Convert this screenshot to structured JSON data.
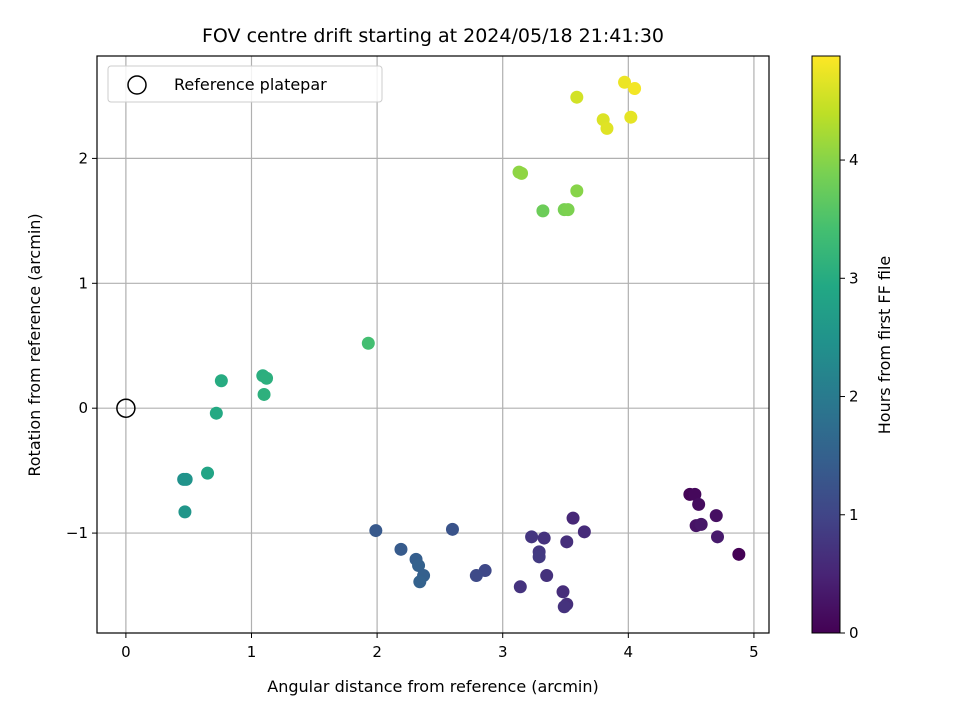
{
  "chart_data": {
    "type": "scatter",
    "title": "FOV centre drift starting at 2024/05/18 21:41:30",
    "xlabel": "Angular distance from reference (arcmin)",
    "ylabel": "Rotation from reference (arcmin)",
    "colorbar_label": "Hours from first FF file",
    "xlim": [
      -0.23,
      5.12
    ],
    "ylim": [
      -1.8,
      2.82
    ],
    "clim": [
      0,
      4.88
    ],
    "x_ticks": [
      0,
      1,
      2,
      3,
      4,
      5
    ],
    "y_ticks": [
      -1,
      0,
      1,
      2
    ],
    "colorbar_ticks": [
      0,
      1,
      2,
      3,
      4
    ],
    "grid": true,
    "legend_position": "top-left",
    "legend": [
      {
        "label": "Reference platepar",
        "marker": "open-circle",
        "color": "#000000"
      }
    ],
    "reference_point": {
      "x": 0,
      "y": 0
    },
    "colormap": "viridis",
    "points": [
      {
        "x": 4.49,
        "y": -0.69,
        "t": 0.05
      },
      {
        "x": 4.53,
        "y": -0.69,
        "t": 0.1
      },
      {
        "x": 4.56,
        "y": -0.77,
        "t": 0.15
      },
      {
        "x": 4.7,
        "y": -0.86,
        "t": 0.2
      },
      {
        "x": 4.54,
        "y": -0.94,
        "t": 0.25
      },
      {
        "x": 4.58,
        "y": -0.93,
        "t": 0.3
      },
      {
        "x": 4.71,
        "y": -1.03,
        "t": 0.35
      },
      {
        "x": 4.88,
        "y": -1.17,
        "t": 0.02
      },
      {
        "x": 3.56,
        "y": -0.88,
        "t": 0.55
      },
      {
        "x": 3.65,
        "y": -0.99,
        "t": 0.6
      },
      {
        "x": 3.51,
        "y": -1.07,
        "t": 0.65
      },
      {
        "x": 3.33,
        "y": -1.04,
        "t": 0.7
      },
      {
        "x": 3.23,
        "y": -1.03,
        "t": 0.75
      },
      {
        "x": 3.29,
        "y": -1.15,
        "t": 0.8
      },
      {
        "x": 3.29,
        "y": -1.19,
        "t": 0.82
      },
      {
        "x": 3.35,
        "y": -1.34,
        "t": 0.68
      },
      {
        "x": 3.14,
        "y": -1.43,
        "t": 0.72
      },
      {
        "x": 3.48,
        "y": -1.47,
        "t": 0.62
      },
      {
        "x": 3.51,
        "y": -1.57,
        "t": 0.66
      },
      {
        "x": 3.49,
        "y": -1.59,
        "t": 0.7
      },
      {
        "x": 2.86,
        "y": -1.3,
        "t": 1.05
      },
      {
        "x": 2.79,
        "y": -1.34,
        "t": 1.08
      },
      {
        "x": 2.6,
        "y": -0.97,
        "t": 1.25
      },
      {
        "x": 1.99,
        "y": -0.98,
        "t": 1.35
      },
      {
        "x": 2.19,
        "y": -1.13,
        "t": 1.4
      },
      {
        "x": 2.31,
        "y": -1.21,
        "t": 1.45
      },
      {
        "x": 2.33,
        "y": -1.26,
        "t": 1.5
      },
      {
        "x": 2.37,
        "y": -1.34,
        "t": 1.48
      },
      {
        "x": 2.34,
        "y": -1.39,
        "t": 1.52
      },
      {
        "x": 0.46,
        "y": -0.57,
        "t": 2.45
      },
      {
        "x": 0.48,
        "y": -0.57,
        "t": 2.5
      },
      {
        "x": 0.47,
        "y": -0.83,
        "t": 2.55
      },
      {
        "x": 0.65,
        "y": -0.52,
        "t": 2.85
      },
      {
        "x": 0.72,
        "y": -0.04,
        "t": 2.95
      },
      {
        "x": 0.76,
        "y": 0.22,
        "t": 3.0
      },
      {
        "x": 1.09,
        "y": 0.26,
        "t": 3.05
      },
      {
        "x": 1.12,
        "y": 0.24,
        "t": 3.08
      },
      {
        "x": 1.1,
        "y": 0.11,
        "t": 3.1
      },
      {
        "x": 1.93,
        "y": 0.52,
        "t": 3.4
      },
      {
        "x": 3.32,
        "y": 1.58,
        "t": 3.78
      },
      {
        "x": 3.49,
        "y": 1.59,
        "t": 3.88
      },
      {
        "x": 3.52,
        "y": 1.59,
        "t": 3.92
      },
      {
        "x": 3.59,
        "y": 1.74,
        "t": 4.0
      },
      {
        "x": 3.13,
        "y": 1.89,
        "t": 4.04
      },
      {
        "x": 3.15,
        "y": 1.88,
        "t": 4.06
      },
      {
        "x": 3.59,
        "y": 2.49,
        "t": 4.55
      },
      {
        "x": 3.8,
        "y": 2.31,
        "t": 4.62
      },
      {
        "x": 3.83,
        "y": 2.24,
        "t": 4.65
      },
      {
        "x": 3.97,
        "y": 2.61,
        "t": 4.75
      },
      {
        "x": 4.05,
        "y": 2.56,
        "t": 4.8
      },
      {
        "x": 4.02,
        "y": 2.33,
        "t": 4.7
      }
    ]
  }
}
